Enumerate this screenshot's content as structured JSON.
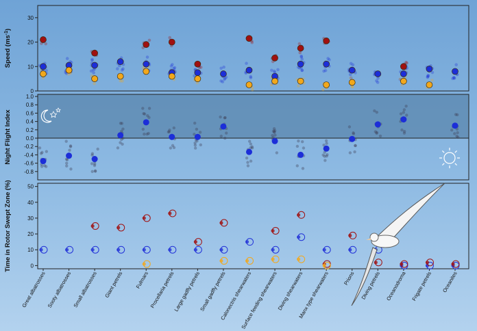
{
  "chart_data": [
    {
      "type": "scatter",
      "panel": "speed",
      "ylabel": "Speed (ms",
      "ylabel_sup": "-1",
      "ylabel_close": ")",
      "ylim": [
        0,
        35
      ],
      "yticks": [
        0,
        10,
        20,
        30
      ],
      "grid": false,
      "categories": [
        "Great albatrosses",
        "Sooty albatrosses",
        "Small albatrosses",
        "Giant petrels",
        "Fulmars",
        "Procellaria petrels",
        "Large gadfly petrels",
        "Small gadfly petrels",
        "Calonectris shearwaters",
        "Surface feeding shearwaters",
        "Diving shearwaters",
        "Manx type shearwaters",
        "Prions",
        "Diving petrels",
        "Oceanodroma",
        "Frigate petrels",
        "Oceanites"
      ],
      "series": [
        {
          "key": "max",
          "color": "#a01010",
          "values": [
            21,
            null,
            15.5,
            null,
            19,
            20,
            11,
            null,
            21.5,
            13.5,
            17.5,
            20.5,
            null,
            null,
            10,
            null,
            null
          ]
        },
        {
          "key": "mean",
          "color": "#1c2ed8",
          "values": [
            10,
            10.5,
            10.5,
            12,
            11,
            7.5,
            7.5,
            7,
            8.5,
            6,
            11,
            11,
            8.5,
            7,
            7,
            9,
            8
          ]
        },
        {
          "key": "min",
          "color": "#f2a81c",
          "values": [
            7,
            8.5,
            5,
            6,
            8,
            6,
            5,
            null,
            2.5,
            4,
            4,
            2.5,
            3.5,
            null,
            4,
            2.5,
            null
          ]
        }
      ]
    },
    {
      "type": "scatter",
      "panel": "night",
      "ylabel": "Night Flight Index",
      "ylim": [
        -1,
        1.05
      ],
      "yticks": [
        1.0,
        0.8,
        0.6,
        0.4,
        0.2,
        0.0,
        -0.2,
        -0.4,
        -0.6,
        -0.8
      ],
      "grid": false,
      "series": [
        {
          "key": "mean",
          "color": "#1c2ed8",
          "values": [
            -0.55,
            -0.42,
            -0.5,
            0.07,
            0.38,
            0.03,
            0.03,
            0.28,
            -0.33,
            -0.07,
            -0.4,
            -0.25,
            -0.02,
            0.33,
            0.45,
            null,
            0.3
          ]
        }
      ]
    },
    {
      "type": "scatter",
      "panel": "rotor",
      "ylabel": "Time in Rotor Swept Zone (%)",
      "ylim": [
        -2,
        52
      ],
      "yticks": [
        0,
        10,
        20,
        30,
        40,
        50
      ],
      "grid": false,
      "series": [
        {
          "key": "blue",
          "color": "#2231d8",
          "values": [
            10,
            10,
            10,
            10,
            10,
            10,
            10,
            10,
            15,
            10,
            18,
            10,
            10,
            10,
            0,
            0,
            0
          ]
        },
        {
          "key": "red",
          "color": "#a01010",
          "values": [
            null,
            null,
            25,
            24,
            30,
            33,
            15,
            27,
            null,
            22,
            32,
            1,
            19,
            2,
            1,
            2,
            1
          ]
        },
        {
          "key": "orange",
          "color": "#f2a81c",
          "values": [
            null,
            null,
            null,
            null,
            1,
            null,
            null,
            3,
            3,
            4,
            4,
            0,
            null,
            null,
            null,
            null,
            null
          ]
        }
      ]
    }
  ]
}
